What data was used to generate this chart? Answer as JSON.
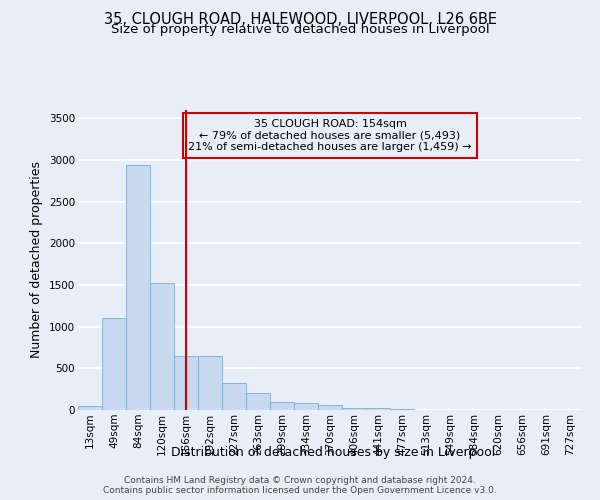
{
  "title1": "35, CLOUGH ROAD, HALEWOOD, LIVERPOOL, L26 6BE",
  "title2": "Size of property relative to detached houses in Liverpool",
  "xlabel": "Distribution of detached houses by size in Liverpool",
  "ylabel": "Number of detached properties",
  "categories": [
    "13sqm",
    "49sqm",
    "84sqm",
    "120sqm",
    "156sqm",
    "192sqm",
    "227sqm",
    "263sqm",
    "299sqm",
    "334sqm",
    "370sqm",
    "406sqm",
    "441sqm",
    "477sqm",
    "513sqm",
    "549sqm",
    "584sqm",
    "620sqm",
    "656sqm",
    "691sqm",
    "727sqm"
  ],
  "values": [
    50,
    1110,
    2940,
    1520,
    650,
    650,
    330,
    200,
    100,
    80,
    55,
    30,
    20,
    8,
    5,
    2,
    2,
    1,
    1,
    1,
    1
  ],
  "bar_color": "#c8d8ee",
  "bar_edge_color": "#7aafd4",
  "background_color": "#e8eef8",
  "grid_color": "#ffffff",
  "vline_x": 4,
  "vline_color": "#cc0000",
  "annotation_text": "35 CLOUGH ROAD: 154sqm\n← 79% of detached houses are smaller (5,493)\n21% of semi-detached houses are larger (1,459) →",
  "annotation_box_color": "#cc0000",
  "ylim": [
    0,
    3600
  ],
  "yticks": [
    0,
    500,
    1000,
    1500,
    2000,
    2500,
    3000,
    3500
  ],
  "footer1": "Contains HM Land Registry data © Crown copyright and database right 2024.",
  "footer2": "Contains public sector information licensed under the Open Government Licence v3.0.",
  "title1_fontsize": 10.5,
  "title2_fontsize": 9.5,
  "axis_label_fontsize": 9,
  "tick_fontsize": 7.5,
  "annotation_fontsize": 8,
  "footer_fontsize": 6.5
}
